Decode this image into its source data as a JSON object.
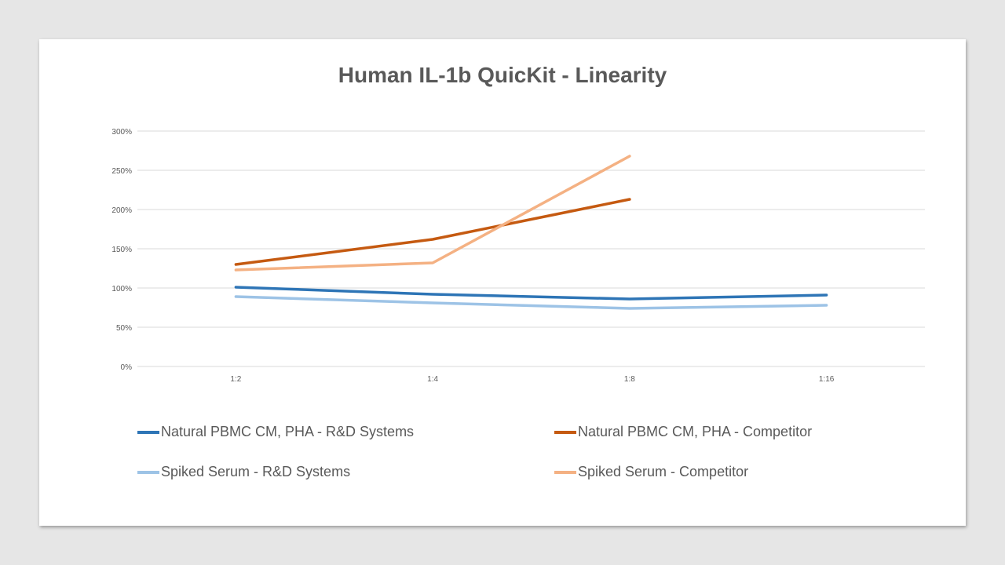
{
  "chart_data": {
    "type": "line",
    "title": "Human IL-1b QuicKit - Linearity",
    "xlabel": "",
    "ylabel": "",
    "categories": [
      "1:2",
      "1:4",
      "1:8",
      "1:16"
    ],
    "ylim": [
      0,
      300
    ],
    "yticks": [
      0,
      50,
      100,
      150,
      200,
      250,
      300
    ],
    "ytick_labels": [
      "0%",
      "50%",
      "100%",
      "150%",
      "200%",
      "250%",
      "300%"
    ],
    "grid": true,
    "legend_position": "bottom",
    "series": [
      {
        "name": "Natural PBMC CM, PHA - R&D Systems",
        "color": "#2e75b6",
        "values": [
          101,
          92,
          86,
          91
        ]
      },
      {
        "name": "Natural PBMC CM, PHA - Competitor",
        "color": "#c55a11",
        "values": [
          130,
          162,
          213,
          null
        ]
      },
      {
        "name": "Spiked Serum - R&D Systems",
        "color": "#9dc3e6",
        "values": [
          89,
          81,
          74,
          78
        ]
      },
      {
        "name": "Spiked Serum - Competitor",
        "color": "#f4b183",
        "values": [
          123,
          132,
          268,
          null
        ]
      }
    ]
  }
}
